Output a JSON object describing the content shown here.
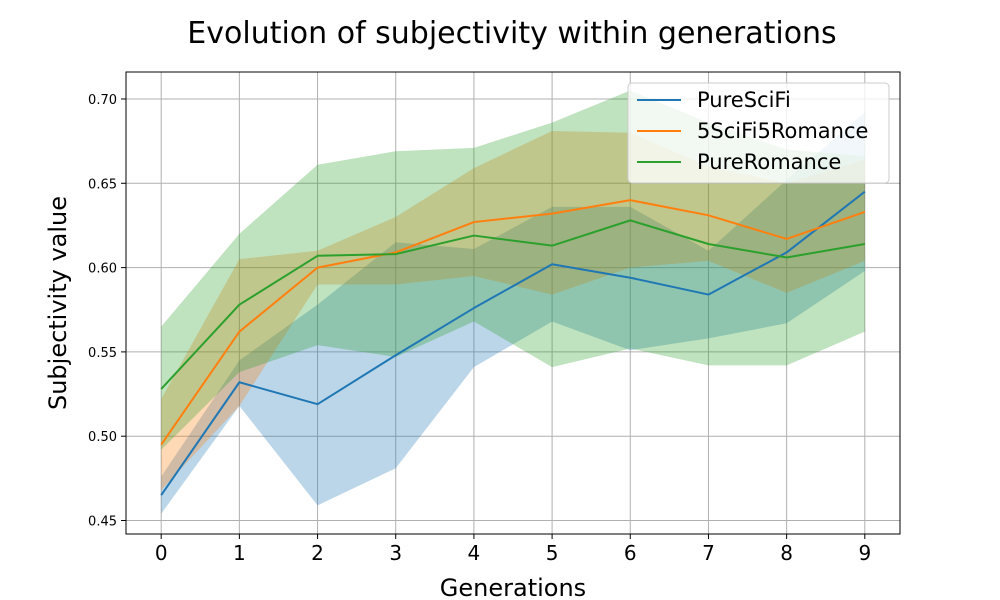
{
  "chart_data": {
    "type": "line",
    "title": "Evolution of subjectivity within generations",
    "xlabel": "Generations",
    "ylabel": "Subjectivity value",
    "x": [
      0,
      1,
      2,
      3,
      4,
      5,
      6,
      7,
      8,
      9
    ],
    "xlim": [
      -0.45,
      9.45
    ],
    "ylim": [
      0.442,
      0.716
    ],
    "yticks": [
      "0.45",
      "0.50",
      "0.55",
      "0.60",
      "0.65",
      "0.70"
    ],
    "grid": true,
    "legend_position": "top-right",
    "series": [
      {
        "name": "PureSciFi",
        "color": "#1f77b4",
        "values": [
          0.465,
          0.532,
          0.519,
          0.548,
          0.576,
          0.602,
          0.594,
          0.584,
          0.609,
          0.645
        ],
        "lower": [
          0.454,
          0.518,
          0.459,
          0.481,
          0.541,
          0.568,
          0.551,
          0.558,
          0.567,
          0.598
        ],
        "upper": [
          0.476,
          0.545,
          0.578,
          0.615,
          0.611,
          0.636,
          0.636,
          0.61,
          0.652,
          0.692
        ]
      },
      {
        "name": "5SciFi5Romance",
        "color": "#ff7f0e",
        "values": [
          0.495,
          0.562,
          0.6,
          0.609,
          0.627,
          0.632,
          0.64,
          0.631,
          0.617,
          0.633
        ],
        "lower": [
          0.468,
          0.518,
          0.59,
          0.59,
          0.595,
          0.584,
          0.6,
          0.604,
          0.585,
          0.604
        ],
        "upper": [
          0.522,
          0.605,
          0.61,
          0.63,
          0.659,
          0.681,
          0.68,
          0.66,
          0.65,
          0.664
        ]
      },
      {
        "name": "PureRomance",
        "color": "#2ca02c",
        "values": [
          0.528,
          0.578,
          0.607,
          0.608,
          0.619,
          0.613,
          0.628,
          0.614,
          0.606,
          0.614
        ],
        "lower": [
          0.492,
          0.538,
          0.554,
          0.547,
          0.568,
          0.541,
          0.552,
          0.542,
          0.542,
          0.562
        ],
        "upper": [
          0.565,
          0.62,
          0.661,
          0.669,
          0.671,
          0.686,
          0.705,
          0.686,
          0.67,
          0.666
        ]
      }
    ]
  }
}
